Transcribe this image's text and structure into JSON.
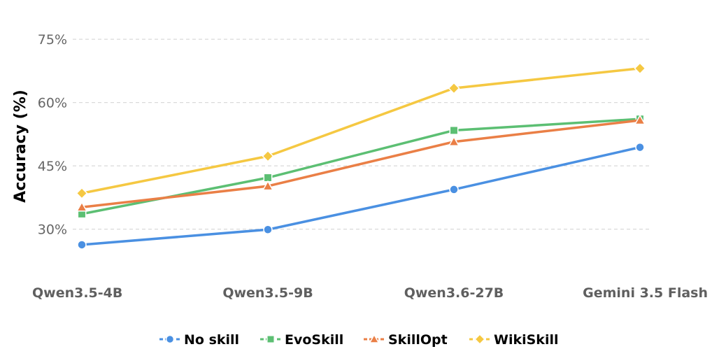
{
  "chart_data": {
    "type": "line",
    "title": "",
    "xlabel": "",
    "ylabel": "Accuracy (%)",
    "categories": [
      "Qwen3.5-4B",
      "Qwen3.5-9B",
      "Qwen3.6-27B",
      "Gemini 3.5 Flash"
    ],
    "ylim": [
      19,
      78
    ],
    "yticks": [
      30,
      45,
      60,
      75
    ],
    "ytick_labels": [
      "30%",
      "45%",
      "60%",
      "75%"
    ],
    "grid": "horizontal dashed",
    "legend_position": "bottom-center",
    "series": [
      {
        "name": "No skill",
        "color": "#4a90e2",
        "marker": "circle",
        "values": [
          26.3,
          29.9,
          39.4,
          49.4
        ]
      },
      {
        "name": "EvoSkill",
        "color": "#5cbf73",
        "marker": "square",
        "values": [
          33.6,
          42.2,
          53.4,
          56.1
        ]
      },
      {
        "name": "SkillOpt",
        "color": "#ea7f46",
        "marker": "triangle",
        "values": [
          35.2,
          40.2,
          50.7,
          55.8
        ]
      },
      {
        "name": "WikiSkill",
        "color": "#f5c842",
        "marker": "diamond",
        "values": [
          38.5,
          47.3,
          63.4,
          68.1
        ]
      }
    ]
  }
}
